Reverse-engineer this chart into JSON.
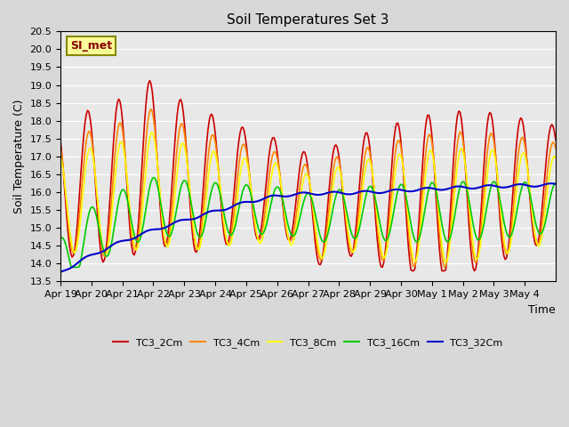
{
  "title": "Soil Temperatures Set 3",
  "xlabel": "Time",
  "ylabel": "Soil Temperature (C)",
  "ylim": [
    13.5,
    20.5
  ],
  "yticks": [
    13.5,
    14.0,
    14.5,
    15.0,
    15.5,
    16.0,
    16.5,
    17.0,
    17.5,
    18.0,
    18.5,
    19.0,
    19.5,
    20.0,
    20.5
  ],
  "xtick_labels": [
    "Apr 19",
    "Apr 20",
    "Apr 21",
    "Apr 22",
    "Apr 23",
    "Apr 24",
    "Apr 25",
    "Apr 26",
    "Apr 27",
    "Apr 28",
    "Apr 29",
    "Apr 30",
    "May 1",
    "May 2",
    "May 3",
    "May 4"
  ],
  "series_colors": [
    "#cc0000",
    "#ff8800",
    "#ffff00",
    "#00cc00",
    "#0000cc"
  ],
  "series_names": [
    "TC3_2Cm",
    "TC3_4Cm",
    "TC3_8Cm",
    "TC3_16Cm",
    "TC3_32Cm"
  ],
  "fig_bg_color": "#d8d8d8",
  "plot_bg_color": "#e8e8e8",
  "annotation_text": "SI_met",
  "annotation_fg": "#8b0000",
  "annotation_bg": "#ffff99",
  "annotation_border": "#888800"
}
